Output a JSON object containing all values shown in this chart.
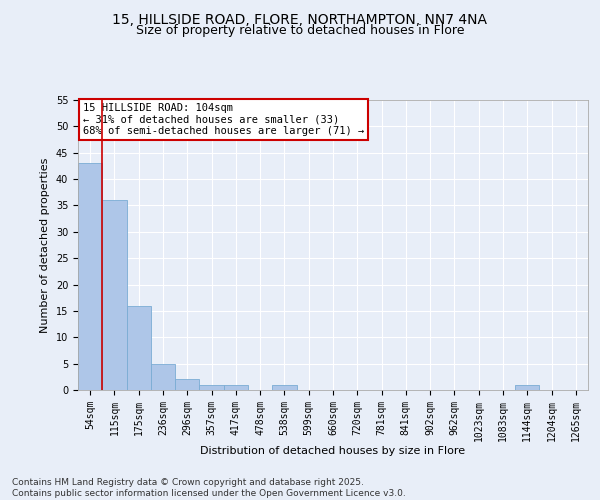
{
  "title1": "15, HILLSIDE ROAD, FLORE, NORTHAMPTON, NN7 4NA",
  "title2": "Size of property relative to detached houses in Flore",
  "xlabel": "Distribution of detached houses by size in Flore",
  "ylabel": "Number of detached properties",
  "categories": [
    "54sqm",
    "115sqm",
    "175sqm",
    "236sqm",
    "296sqm",
    "357sqm",
    "417sqm",
    "478sqm",
    "538sqm",
    "599sqm",
    "660sqm",
    "720sqm",
    "781sqm",
    "841sqm",
    "902sqm",
    "962sqm",
    "1023sqm",
    "1083sqm",
    "1144sqm",
    "1204sqm",
    "1265sqm"
  ],
  "values": [
    43,
    36,
    16,
    5,
    2,
    1,
    1,
    0,
    1,
    0,
    0,
    0,
    0,
    0,
    0,
    0,
    0,
    0,
    1,
    0,
    0
  ],
  "bar_color": "#aec6e8",
  "bar_edge_color": "#7aacd4",
  "vline_color": "#cc0000",
  "annotation_title": "15 HILLSIDE ROAD: 104sqm",
  "annotation_line2": "← 31% of detached houses are smaller (33)",
  "annotation_line3": "68% of semi-detached houses are larger (71) →",
  "annotation_box_color": "#cc0000",
  "ylim": [
    0,
    55
  ],
  "yticks": [
    0,
    5,
    10,
    15,
    20,
    25,
    30,
    35,
    40,
    45,
    50,
    55
  ],
  "footer": "Contains HM Land Registry data © Crown copyright and database right 2025.\nContains public sector information licensed under the Open Government Licence v3.0.",
  "bg_color": "#e8eef8",
  "plot_bg_color": "#e8eef8",
  "grid_color": "#ffffff",
  "title_fontsize": 10,
  "subtitle_fontsize": 9,
  "axis_label_fontsize": 8,
  "tick_fontsize": 7,
  "annotation_fontsize": 7.5,
  "footer_fontsize": 6.5
}
